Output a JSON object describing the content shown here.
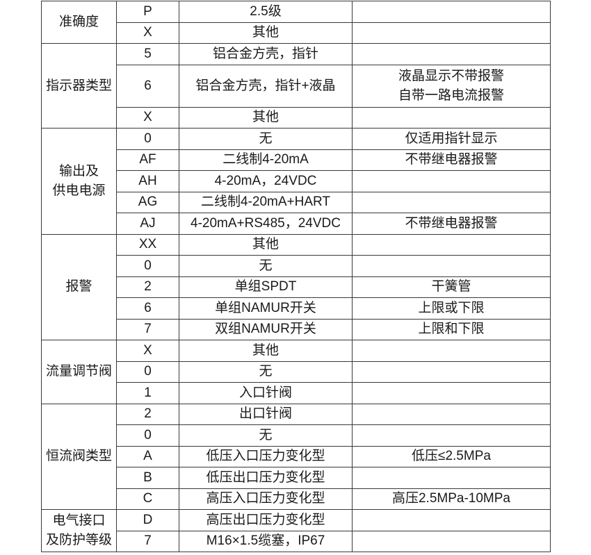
{
  "table": {
    "columns": [
      "category",
      "code",
      "description",
      "note"
    ],
    "sections": [
      {
        "label": "准确度",
        "rows": [
          {
            "code": "P",
            "desc": "2.5级",
            "note": ""
          },
          {
            "code": "X",
            "desc": "其他",
            "note": ""
          }
        ]
      },
      {
        "label": "指示器类型",
        "rows": [
          {
            "code": "5",
            "desc": "铝合金方壳，指针",
            "note": ""
          },
          {
            "code": "6",
            "desc": "铝合金方壳，指针+液晶",
            "note": [
              "液晶显示不带报警",
              "自带一路电流报警"
            ],
            "tall": true
          },
          {
            "code": "X",
            "desc": "其他",
            "note": ""
          }
        ]
      },
      {
        "label": "输出及\n供电电源",
        "rows": [
          {
            "code": "0",
            "desc": "无",
            "note": "仅适用指针显示"
          },
          {
            "code": "AF",
            "desc": "二线制4-20mA",
            "note": "不带继电器报警"
          },
          {
            "code": "AH",
            "desc": "4-20mA，24VDC",
            "note": ""
          },
          {
            "code": "AG",
            "desc": "二线制4-20mA+HART",
            "note": ""
          },
          {
            "code": "AJ",
            "desc": "4-20mA+RS485，24VDC",
            "note": "不带继电器报警"
          }
        ]
      },
      {
        "label": "报警",
        "rows": [
          {
            "code": "XX",
            "desc": "其他",
            "note": ""
          },
          {
            "code": "0",
            "desc": "无",
            "note": ""
          },
          {
            "code": "2",
            "desc": "单组SPDT",
            "note": "干簧管"
          },
          {
            "code": "6",
            "desc": "单组NAMUR开关",
            "note": "上限或下限"
          },
          {
            "code": "7",
            "desc": "双组NAMUR开关",
            "note": "上限和下限"
          }
        ]
      },
      {
        "label": "流量调节阀",
        "rows": [
          {
            "code": "X",
            "desc": "其他",
            "note": ""
          },
          {
            "code": "0",
            "desc": "无",
            "note": ""
          },
          {
            "code": "1",
            "desc": "入口针阀",
            "note": ""
          }
        ]
      },
      {
        "label": "恒流阀类型",
        "rows": [
          {
            "code": "2",
            "desc": "出口针阀",
            "note": ""
          },
          {
            "code": "0",
            "desc": "无",
            "note": ""
          },
          {
            "code": "A",
            "desc": "低压入口压力变化型",
            "note": "低压≤2.5MPa"
          },
          {
            "code": "B",
            "desc": "低压出口压力变化型",
            "note": ""
          },
          {
            "code": "C",
            "desc": "高压入口压力变化型",
            "note": "高压2.5MPa-10MPa"
          }
        ]
      },
      {
        "label": "电气接口\n及防护等级",
        "rows": [
          {
            "code": "D",
            "desc": "高压出口压力变化型",
            "note": ""
          },
          {
            "code": "7",
            "desc": "M16×1.5缆塞，IP67",
            "note": ""
          }
        ]
      }
    ]
  }
}
